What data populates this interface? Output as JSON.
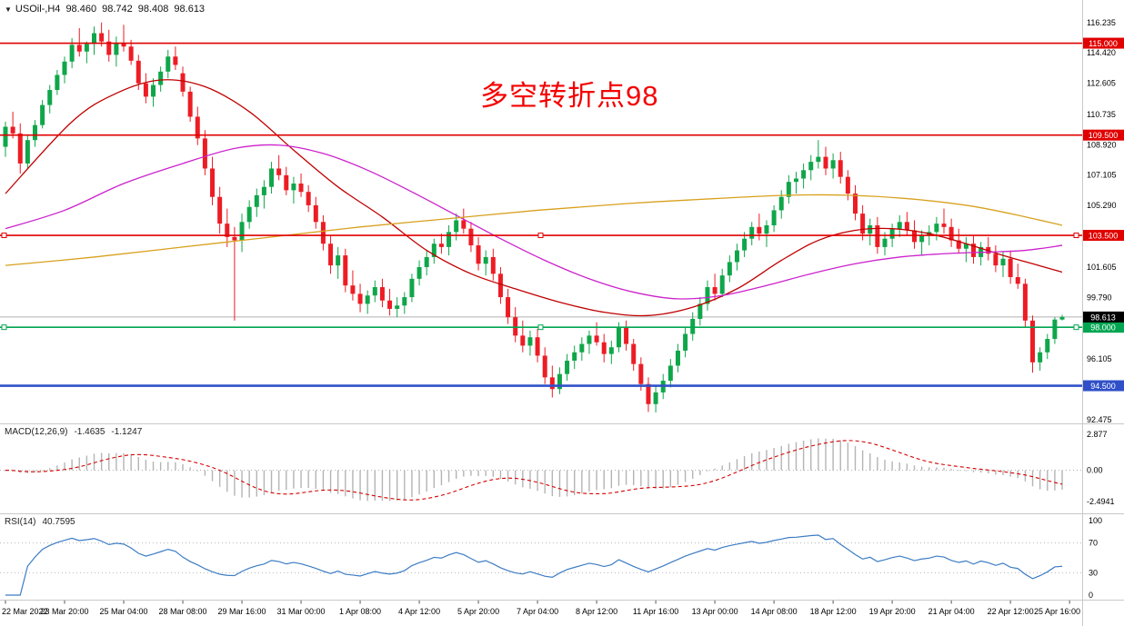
{
  "header": {
    "symbol_marker": "▼",
    "symbol": "USOil-,H4",
    "open": "98.460",
    "high": "98.742",
    "low": "98.408",
    "close": "98.613"
  },
  "annotation": {
    "text": "多空转折点98",
    "color": "#f40000"
  },
  "indicators": {
    "macd": {
      "label": "MACD(12,26,9)",
      "value": "-1.4635",
      "signal_value": "-1.1247"
    },
    "rsi": {
      "label": "RSI(14)",
      "value": "40.7595"
    }
  },
  "chart_data": {
    "type": "candlestick",
    "title": "USOil-,H4",
    "price_range": [
      92.3,
      117.15
    ],
    "colors": {
      "up": "#0FA64A",
      "down": "#ED1C24",
      "axis_text": "#000000",
      "pane_border": "#c8c8c8",
      "current_price_line": "#b0b0b0"
    },
    "price_axis_labels": [
      116.235,
      114.42,
      112.605,
      110.735,
      108.92,
      107.105,
      105.29,
      101.605,
      99.79,
      96.105,
      92.475
    ],
    "time_labels": [
      "22 Mar 2022",
      "23 Mar 20:00",
      "25 Mar 04:00",
      "28 Mar 08:00",
      "29 Mar 16:00",
      "31 Mar 00:00",
      "1 Apr 08:00",
      "4 Apr 12:00",
      "5 Apr 20:00",
      "7 Apr 04:00",
      "8 Apr 12:00",
      "11 Apr 16:00",
      "13 Apr 00:00",
      "14 Apr 08:00",
      "18 Apr 12:00",
      "19 Apr 20:00",
      "21 Apr 04:00",
      "22 Apr 12:00",
      "25 Apr 16:00"
    ],
    "candles_per_time_label": 8,
    "hlines": [
      {
        "price": 115.0,
        "label": "115.000",
        "color": "#e00000",
        "width": 1.6,
        "handles": false
      },
      {
        "price": 109.5,
        "label": "109.500",
        "color": "#e00000",
        "width": 1.6,
        "handles": false
      },
      {
        "price": 103.5,
        "label": "103.500",
        "color": "#e00000",
        "width": 1.6,
        "handles": true
      },
      {
        "price": 98.0,
        "label": "98.000",
        "color": "#00a651",
        "width": 1.6,
        "handles": true
      },
      {
        "price": 94.5,
        "label": "94.500",
        "color": "#3050C8",
        "width": 2.6,
        "handles": false
      }
    ],
    "current_price": {
      "value": 98.613,
      "label": "98.613",
      "box_color": "#000000"
    },
    "moving_averages": [
      {
        "name": "ma-red",
        "color": "#c00000",
        "points": [
          [
            0,
            106.0
          ],
          [
            9,
            110.3
          ],
          [
            15,
            112.0
          ],
          [
            21,
            112.8
          ],
          [
            27,
            112.4
          ],
          [
            33,
            110.9
          ],
          [
            39,
            108.6
          ],
          [
            45,
            106.4
          ],
          [
            51,
            104.6
          ],
          [
            57,
            102.6
          ],
          [
            63,
            101.2
          ],
          [
            69,
            100.3
          ],
          [
            75,
            99.5
          ],
          [
            81,
            98.9
          ],
          [
            87,
            98.7
          ],
          [
            93,
            99.2
          ],
          [
            99,
            100.3
          ],
          [
            105,
            102.0
          ],
          [
            110,
            103.2
          ],
          [
            115,
            103.8
          ],
          [
            120,
            103.9
          ],
          [
            125,
            103.6
          ],
          [
            130,
            103.0
          ],
          [
            135,
            102.3
          ],
          [
            139,
            101.8
          ],
          [
            143,
            101.3
          ]
        ]
      },
      {
        "name": "ma-magenta",
        "color": "#cc22cc",
        "points": [
          [
            0,
            103.9
          ],
          [
            8,
            105.0
          ],
          [
            16,
            106.6
          ],
          [
            24,
            107.8
          ],
          [
            31,
            108.7
          ],
          [
            37,
            108.9
          ],
          [
            43,
            108.4
          ],
          [
            49,
            107.4
          ],
          [
            55,
            106.1
          ],
          [
            61,
            104.7
          ],
          [
            67,
            103.3
          ],
          [
            73,
            102.0
          ],
          [
            79,
            100.9
          ],
          [
            85,
            100.1
          ],
          [
            91,
            99.7
          ],
          [
            97,
            99.9
          ],
          [
            103,
            100.5
          ],
          [
            109,
            101.2
          ],
          [
            115,
            101.8
          ],
          [
            121,
            102.2
          ],
          [
            127,
            102.4
          ],
          [
            133,
            102.5
          ],
          [
            138,
            102.6
          ],
          [
            143,
            102.9
          ]
        ]
      },
      {
        "name": "ma-orange",
        "color": "#d8a01d",
        "points": [
          [
            0,
            101.7
          ],
          [
            12,
            102.2
          ],
          [
            24,
            102.8
          ],
          [
            36,
            103.4
          ],
          [
            48,
            104.0
          ],
          [
            60,
            104.5
          ],
          [
            72,
            105.0
          ],
          [
            84,
            105.4
          ],
          [
            96,
            105.7
          ],
          [
            106,
            105.9
          ],
          [
            114,
            105.9
          ],
          [
            122,
            105.7
          ],
          [
            130,
            105.3
          ],
          [
            136,
            104.8
          ],
          [
            143,
            104.1
          ]
        ]
      }
    ],
    "macd": {
      "params": [
        12,
        26,
        9
      ],
      "histogram_color": "#b4b4b4",
      "signal_color": "#d40000",
      "axis": [
        {
          "text": "2.877",
          "v": 2.877
        },
        {
          "text": "0.00",
          "v": 0
        },
        {
          "text": "-2.4941",
          "v": -2.4941
        }
      ]
    },
    "rsi": {
      "period": 14,
      "color": "#3C7CC4",
      "levels": [
        70,
        30
      ],
      "axis": [
        {
          "text": "100",
          "v": 100
        },
        {
          "text": "70",
          "v": 70
        },
        {
          "text": "30",
          "v": 30
        },
        {
          "text": "0",
          "v": 0
        }
      ]
    },
    "candles": [
      [
        108.8,
        110.3,
        108.2,
        110.0
      ],
      [
        110.0,
        110.9,
        109.3,
        109.6
      ],
      [
        109.6,
        110.2,
        107.2,
        107.8
      ],
      [
        107.8,
        109.5,
        107.5,
        109.2
      ],
      [
        109.2,
        110.4,
        108.8,
        110.1
      ],
      [
        110.1,
        111.6,
        109.9,
        111.3
      ],
      [
        111.3,
        112.5,
        110.8,
        112.2
      ],
      [
        112.2,
        113.4,
        111.9,
        113.1
      ],
      [
        113.1,
        114.2,
        112.6,
        113.9
      ],
      [
        113.9,
        115.3,
        113.5,
        114.9
      ],
      [
        114.9,
        115.9,
        114.2,
        114.5
      ],
      [
        114.5,
        115.1,
        113.8,
        114.95
      ],
      [
        114.95,
        116.0,
        114.3,
        115.6
      ],
      [
        115.6,
        116.24,
        114.8,
        115.1
      ],
      [
        115.1,
        115.8,
        113.9,
        114.3
      ],
      [
        114.3,
        115.4,
        113.6,
        115.0
      ],
      [
        115.0,
        116.1,
        114.5,
        114.8
      ],
      [
        114.8,
        115.2,
        113.7,
        113.95
      ],
      [
        113.95,
        114.3,
        112.2,
        112.6
      ],
      [
        112.6,
        113.2,
        111.4,
        111.8
      ],
      [
        111.8,
        112.9,
        111.2,
        112.5
      ],
      [
        112.5,
        113.6,
        112.1,
        113.3
      ],
      [
        113.3,
        114.6,
        112.9,
        114.2
      ],
      [
        114.2,
        114.8,
        113.4,
        113.7
      ],
      [
        113.2,
        113.6,
        111.8,
        112.1
      ],
      [
        112.1,
        112.4,
        110.3,
        110.6
      ],
      [
        110.6,
        111.2,
        108.9,
        109.3
      ],
      [
        109.3,
        109.8,
        107.1,
        107.5
      ],
      [
        107.5,
        108.2,
        105.3,
        105.8
      ],
      [
        105.8,
        106.4,
        103.6,
        104.2
      ],
      [
        104.2,
        105.1,
        102.8,
        103.4
      ],
      [
        103.4,
        104.0,
        98.4,
        103.2
      ],
      [
        103.2,
        104.8,
        102.5,
        104.3
      ],
      [
        104.3,
        105.6,
        103.9,
        105.2
      ],
      [
        105.2,
        106.3,
        104.6,
        105.9
      ],
      [
        105.9,
        106.8,
        105.1,
        106.4
      ],
      [
        106.4,
        107.9,
        106.0,
        107.5
      ],
      [
        107.5,
        108.3,
        106.8,
        107.1
      ],
      [
        107.1,
        107.6,
        105.9,
        106.2
      ],
      [
        106.2,
        107.0,
        105.4,
        106.6
      ],
      [
        106.6,
        107.2,
        105.8,
        106.1
      ],
      [
        106.1,
        106.5,
        104.9,
        105.3
      ],
      [
        105.3,
        105.8,
        103.9,
        104.3
      ],
      [
        104.3,
        104.7,
        102.6,
        103.0
      ],
      [
        103.0,
        103.5,
        101.2,
        101.7
      ],
      [
        101.7,
        102.8,
        100.9,
        102.3
      ],
      [
        102.3,
        102.7,
        100.1,
        100.5
      ],
      [
        100.5,
        101.4,
        99.6,
        100.0
      ],
      [
        100.0,
        100.6,
        98.9,
        99.4
      ],
      [
        99.4,
        100.2,
        98.8,
        99.9
      ],
      [
        99.9,
        100.8,
        99.5,
        100.4
      ],
      [
        100.4,
        100.9,
        99.2,
        99.6
      ],
      [
        99.6,
        100.3,
        98.7,
        99.1
      ],
      [
        99.1,
        99.8,
        98.6,
        99.3
      ],
      [
        99.3,
        100.1,
        98.8,
        99.8
      ],
      [
        99.8,
        101.2,
        99.5,
        100.9
      ],
      [
        100.9,
        102.0,
        100.5,
        101.6
      ],
      [
        101.6,
        102.6,
        101.1,
        102.2
      ],
      [
        102.2,
        103.3,
        101.8,
        103.0
      ],
      [
        103.0,
        103.6,
        102.4,
        102.8
      ],
      [
        102.8,
        104.1,
        102.3,
        103.7
      ],
      [
        103.7,
        104.8,
        103.2,
        104.4
      ],
      [
        104.4,
        105.1,
        103.6,
        103.9
      ],
      [
        103.9,
        104.3,
        102.5,
        102.9
      ],
      [
        102.9,
        103.4,
        101.4,
        101.8
      ],
      [
        101.8,
        102.6,
        101.1,
        102.2
      ],
      [
        102.2,
        102.7,
        100.8,
        101.2
      ],
      [
        101.2,
        101.6,
        99.4,
        99.8
      ],
      [
        99.8,
        100.3,
        98.2,
        98.6
      ],
      [
        98.6,
        99.2,
        97.1,
        97.5
      ],
      [
        97.5,
        98.4,
        96.5,
        96.9
      ],
      [
        96.9,
        97.8,
        96.3,
        97.4
      ],
      [
        97.4,
        97.9,
        95.9,
        96.3
      ],
      [
        96.3,
        96.8,
        94.6,
        95.0
      ],
      [
        95.0,
        95.7,
        93.8,
        94.3
      ],
      [
        94.3,
        95.6,
        94.0,
        95.2
      ],
      [
        95.2,
        96.4,
        94.8,
        96.0
      ],
      [
        96.0,
        96.9,
        95.5,
        96.5
      ],
      [
        96.5,
        97.4,
        96.0,
        97.0
      ],
      [
        97.0,
        97.8,
        96.4,
        97.5
      ],
      [
        97.5,
        98.3,
        96.9,
        97.1
      ],
      [
        97.1,
        97.6,
        95.9,
        96.4
      ],
      [
        96.4,
        97.2,
        95.8,
        96.8
      ],
      [
        96.8,
        98.3,
        96.5,
        98.0
      ],
      [
        98.0,
        98.4,
        96.6,
        97.0
      ],
      [
        97.0,
        97.3,
        95.4,
        95.8
      ],
      [
        95.8,
        96.2,
        94.2,
        94.6
      ],
      [
        94.6,
        95.0,
        92.93,
        93.4
      ],
      [
        93.4,
        94.5,
        92.9,
        94.1
      ],
      [
        94.1,
        95.2,
        93.7,
        94.8
      ],
      [
        94.8,
        96.1,
        94.4,
        95.7
      ],
      [
        95.7,
        97.0,
        95.3,
        96.6
      ],
      [
        96.6,
        98.0,
        96.2,
        97.6
      ],
      [
        97.6,
        98.9,
        97.2,
        98.5
      ],
      [
        98.5,
        99.8,
        98.1,
        99.4
      ],
      [
        99.4,
        100.8,
        99.0,
        100.4
      ],
      [
        100.4,
        101.2,
        99.6,
        100.0
      ],
      [
        100.0,
        101.5,
        99.8,
        101.1
      ],
      [
        101.1,
        102.3,
        100.7,
        101.9
      ],
      [
        101.9,
        103.0,
        101.4,
        102.6
      ],
      [
        102.6,
        103.7,
        102.2,
        103.3
      ],
      [
        103.3,
        104.3,
        102.9,
        104.0
      ],
      [
        104.0,
        104.8,
        103.2,
        103.6
      ],
      [
        103.6,
        104.4,
        102.8,
        104.1
      ],
      [
        104.1,
        105.3,
        103.7,
        105.0
      ],
      [
        105.0,
        106.2,
        104.5,
        105.8
      ],
      [
        105.8,
        107.1,
        105.4,
        106.7
      ],
      [
        106.7,
        107.3,
        106.0,
        106.9
      ],
      [
        106.9,
        107.8,
        106.3,
        107.4
      ],
      [
        107.4,
        108.3,
        106.8,
        107.9
      ],
      [
        107.9,
        109.2,
        107.5,
        108.2
      ],
      [
        108.2,
        108.8,
        107.1,
        107.5
      ],
      [
        107.5,
        108.4,
        106.9,
        108.0
      ],
      [
        108.0,
        108.5,
        106.6,
        107.0
      ],
      [
        107.0,
        107.4,
        105.6,
        106.0
      ],
      [
        106.0,
        106.5,
        104.4,
        104.8
      ],
      [
        104.8,
        105.3,
        103.2,
        103.6
      ],
      [
        103.6,
        104.5,
        102.9,
        104.1
      ],
      [
        104.1,
        104.6,
        102.4,
        102.8
      ],
      [
        102.8,
        103.7,
        102.3,
        103.3
      ],
      [
        103.3,
        104.2,
        102.8,
        103.9
      ],
      [
        103.9,
        104.7,
        103.4,
        104.3
      ],
      [
        104.3,
        104.9,
        103.5,
        103.8
      ],
      [
        103.8,
        104.4,
        102.7,
        103.1
      ],
      [
        103.1,
        103.8,
        102.3,
        103.5
      ],
      [
        103.5,
        104.1,
        102.9,
        103.7
      ],
      [
        103.7,
        104.6,
        103.2,
        104.2
      ],
      [
        104.2,
        105.1,
        103.6,
        104.0
      ],
      [
        104.0,
        104.5,
        102.8,
        103.2
      ],
      [
        103.2,
        103.9,
        102.4,
        102.7
      ],
      [
        102.7,
        103.4,
        101.9,
        103.0
      ],
      [
        103.0,
        103.5,
        101.8,
        102.2
      ],
      [
        102.2,
        103.1,
        101.7,
        102.8
      ],
      [
        102.8,
        103.4,
        102.0,
        102.4
      ],
      [
        102.4,
        102.9,
        101.3,
        101.7
      ],
      [
        101.7,
        102.5,
        101.0,
        102.1
      ],
      [
        102.1,
        102.6,
        100.6,
        101.0
      ],
      [
        101.0,
        101.8,
        100.3,
        100.6
      ],
      [
        100.6,
        100.9,
        98.0,
        98.4
      ],
      [
        98.4,
        98.7,
        95.28,
        95.9
      ],
      [
        95.9,
        96.8,
        95.4,
        96.5
      ],
      [
        96.5,
        97.6,
        96.1,
        97.3
      ],
      [
        97.3,
        98.6,
        97.0,
        98.46
      ],
      [
        98.46,
        98.742,
        98.408,
        98.613
      ]
    ]
  }
}
